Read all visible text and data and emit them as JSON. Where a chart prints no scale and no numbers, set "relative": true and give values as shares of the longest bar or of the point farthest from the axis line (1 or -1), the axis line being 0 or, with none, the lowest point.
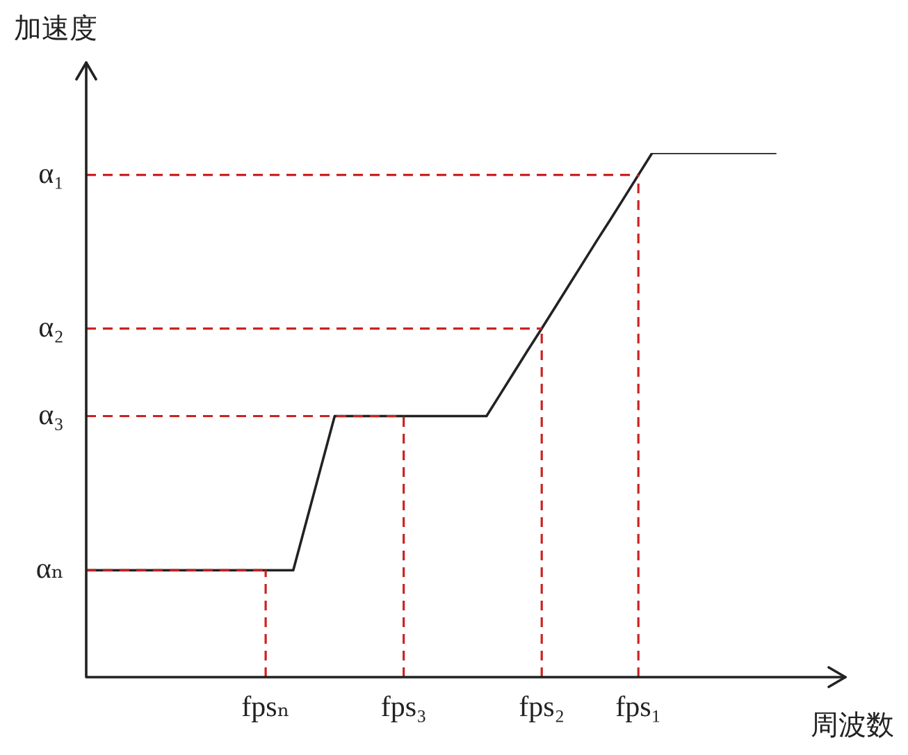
{
  "chart_data": {
    "type": "line",
    "relative": true,
    "xlabel": "周波数",
    "ylabel": "加速度",
    "categories": [
      null,
      null,
      null,
      null,
      null,
      null,
      null,
      null,
      null,
      null,
      null,
      null,
      null,
      "fpsₙ",
      null,
      null,
      null,
      null,
      null,
      null,
      null,
      null,
      null,
      "fps₃",
      null,
      null,
      null,
      null,
      null,
      null,
      null,
      null,
      null,
      "fps₂",
      null,
      null,
      null,
      null,
      null,
      null,
      "fps₁",
      null,
      null,
      null,
      null,
      null,
      null,
      null,
      null,
      null,
      null,
      null,
      null,
      null,
      null,
      null
    ],
    "legend": false,
    "marker": "none",
    "series": [
      {
        "color": "#222222",
        "line_style": "solid",
        "values": [
          0.204,
          0.204,
          0.204,
          0.204,
          0.204,
          0.204,
          0.204,
          0.204,
          0.204,
          0.204,
          0.204,
          0.204,
          0.204,
          0.204,
          0.204,
          0.204,
          0.302,
          0.4,
          0.498,
          0.498,
          0.498,
          0.498,
          0.498,
          0.498,
          0.498,
          0.498,
          0.498,
          0.498,
          0.498,
          0.498,
          0.54,
          0.582,
          0.624,
          0.665,
          0.707,
          0.749,
          0.791,
          0.833,
          0.874,
          0.916,
          0.958,
          1,
          1,
          1,
          1,
          1,
          1,
          1,
          1,
          1,
          1,
          null,
          null,
          null,
          null,
          null
        ]
      }
    ],
    "ref_lines": [
      {
        "axis": "y",
        "value": 0.204,
        "label": "αₙ",
        "color": "#cc2222",
        "line_style": "dashed"
      },
      {
        "axis": "y",
        "value": 0.498,
        "label": "α₃",
        "color": "#cc2222",
        "line_style": "dashed"
      },
      {
        "axis": "y",
        "value": 0.665,
        "label": "α₂",
        "color": "#cc2222",
        "line_style": "dashed"
      },
      {
        "axis": "y",
        "value": 0.958,
        "label": "α₁",
        "color": "#cc2222",
        "line_style": "dashed"
      },
      {
        "axis": "x",
        "value": "fpsₙ",
        "color": "#cc2222",
        "line_style": "dashed"
      },
      {
        "axis": "x",
        "value": "fps₃",
        "color": "#cc2222",
        "line_style": "dashed"
      },
      {
        "axis": "x",
        "value": "fps₂",
        "color": "#cc2222",
        "line_style": "dashed"
      },
      {
        "axis": "x",
        "value": "fps₁",
        "color": "#cc2222",
        "line_style": "dashed"
      }
    ]
  }
}
